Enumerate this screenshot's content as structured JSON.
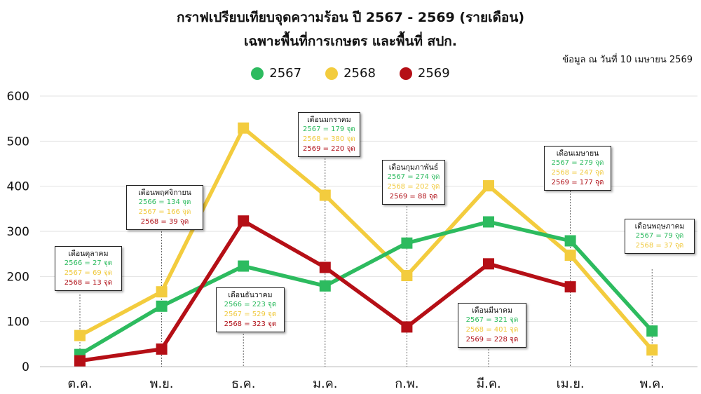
{
  "title": "กราฟเปรียบเทียบจุดความร้อน ปี 2567 - 2569 (รายเดือน)",
  "subtitle": "เฉพาะพื้นที่การเกษตร และพื้นที่ สปก.",
  "note": "ข้อมูล ณ วันที่ 10 เมษายน 2569",
  "colors": {
    "s2567": "#2dbb5f",
    "s2568": "#f3cc3e",
    "s2569": "#b50f16"
  },
  "chart_data": {
    "type": "line",
    "categories": [
      "ต.ค.",
      "พ.ย.",
      "ธ.ค.",
      "ม.ค.",
      "ก.พ.",
      "มี.ค.",
      "เม.ย.",
      "พ.ค."
    ],
    "ylim": [
      0,
      600
    ],
    "yticks": [
      "0",
      "100",
      "200",
      "300",
      "400",
      "500",
      "600"
    ],
    "grid": "horizontal",
    "legend": "top-center",
    "series": [
      {
        "name": "2567",
        "color": "#2dbb5f",
        "values": [
          27,
          134,
          223,
          179,
          274,
          321,
          279,
          79
        ]
      },
      {
        "name": "2568",
        "color": "#f3cc3e",
        "values": [
          69,
          166,
          529,
          380,
          202,
          401,
          247,
          37
        ]
      },
      {
        "name": "2569",
        "color": "#b50f16",
        "values": [
          13,
          39,
          323,
          220,
          88,
          228,
          177,
          null
        ]
      }
    ],
    "annotations": [
      {
        "title": "เดือนตุลาคม",
        "lines": [
          {
            "text": "2566 = 27 จุด",
            "c": "g"
          },
          {
            "text": "2567 = 69 จุด",
            "c": "y"
          },
          {
            "text": "2568 = 13 จุด",
            "c": "r"
          }
        ]
      },
      {
        "title": "เดือนพฤศจิกายน",
        "lines": [
          {
            "text": "2566 = 134 จุด",
            "c": "g"
          },
          {
            "text": "2567 = 166 จุด",
            "c": "y"
          },
          {
            "text": "2568 = 39 จุด",
            "c": "r"
          }
        ]
      },
      {
        "title": "เดือนธันวาคม",
        "lines": [
          {
            "text": "2566 = 223 จุด",
            "c": "g"
          },
          {
            "text": "2567 = 529 จุด",
            "c": "y"
          },
          {
            "text": "2568 = 323 จุด",
            "c": "r"
          }
        ]
      },
      {
        "title": "เดือนมกราคม",
        "lines": [
          {
            "text": "2567 = 179 จุด",
            "c": "g"
          },
          {
            "text": "2568 = 380 จุด",
            "c": "y"
          },
          {
            "text": "2569 = 220 จุด",
            "c": "r"
          }
        ]
      },
      {
        "title": "เดือนกุมภาพันธ์",
        "lines": [
          {
            "text": "2567 = 274 จุด",
            "c": "g"
          },
          {
            "text": "2568 = 202 จุด",
            "c": "y"
          },
          {
            "text": "2569 = 88 จุด",
            "c": "r"
          }
        ]
      },
      {
        "title": "เดือนมีนาคม",
        "lines": [
          {
            "text": "2567 = 321 จุด",
            "c": "g"
          },
          {
            "text": "2568 = 401 จุด",
            "c": "y"
          },
          {
            "text": "2569 = 228 จุด",
            "c": "r"
          }
        ]
      },
      {
        "title": "เดือนเมษายน",
        "lines": [
          {
            "text": "2567 = 279 จุด",
            "c": "g"
          },
          {
            "text": "2568 = 247 จุด",
            "c": "y"
          },
          {
            "text": "2569 = 177 จุด",
            "c": "r"
          }
        ]
      },
      {
        "title": "เดือนพฤษภาคม",
        "lines": [
          {
            "text": "2567 = 79 จุด",
            "c": "g"
          },
          {
            "text": "2568 = 37 จุด",
            "c": "y"
          }
        ]
      }
    ]
  }
}
